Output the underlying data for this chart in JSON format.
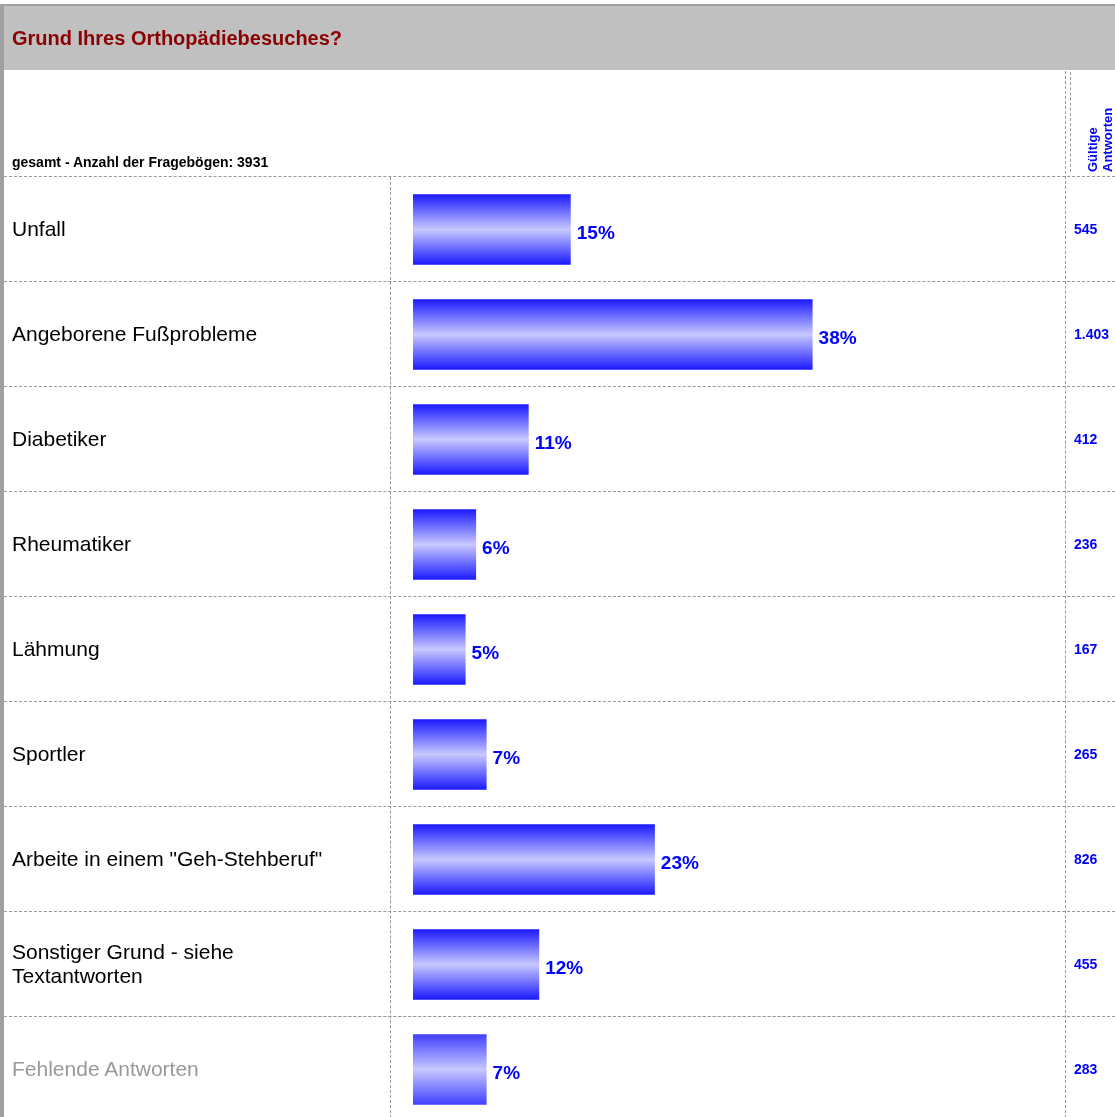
{
  "chart_data": {
    "type": "bar",
    "orientation": "horizontal",
    "title": "Grund Ihres Orthopädiebesuches?",
    "subtitle": "gesamt - Anzahl der Fragebögen: 3931",
    "y2label": "Gültige Antworten",
    "categories": [
      "Unfall",
      "Angeborene Fußprobleme",
      "Diabetiker",
      "Rheumatiker",
      "Lähmung",
      "Sportler",
      "Arbeite in einem \"Geh-Stehberuf\"",
      "Sonstiger Grund - siehe Textantworten",
      "Fehlende Antworten"
    ],
    "values": [
      15,
      38,
      11,
      6,
      5,
      7,
      23,
      12,
      7
    ],
    "value_labels": [
      "15%",
      "38%",
      "11%",
      "6%",
      "5%",
      "7%",
      "23%",
      "12%",
      "7%"
    ],
    "y2_categories": [
      "545",
      "1.403",
      "412",
      "236",
      "167",
      "265",
      "826",
      "455",
      "283"
    ],
    "colors": [
      "#1a1aff",
      "#1a1aff",
      "#1a1aff",
      "#1a1aff",
      "#1a1aff",
      "#1a1aff",
      "#1a1aff",
      "#1a1aff",
      "#4040ff"
    ],
    "xlim": [
      0,
      62
    ],
    "legend": false
  }
}
